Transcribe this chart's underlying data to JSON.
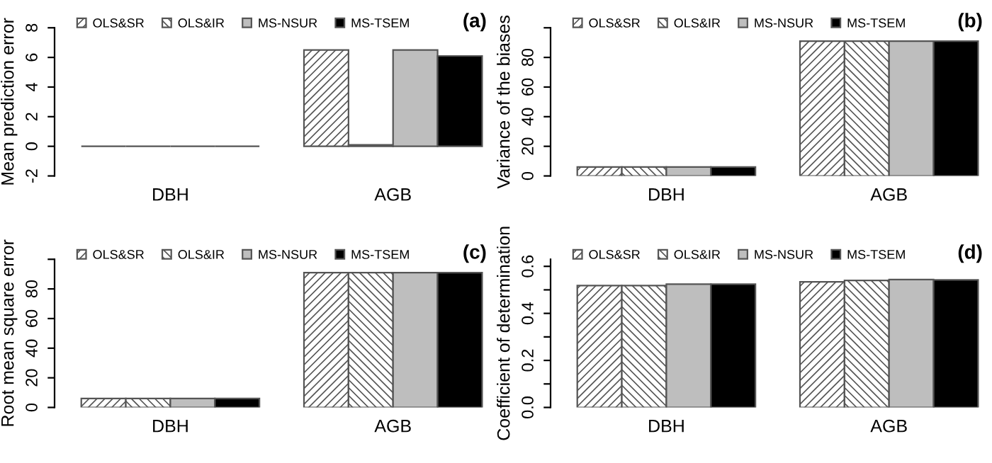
{
  "chart_data": [
    {
      "type": "bar",
      "title": "(a)",
      "ylabel": "Mean prediction error",
      "categories": [
        "DBH",
        "AGB"
      ],
      "ylim": [
        -2,
        8
      ],
      "yticks": [
        -2,
        0,
        2,
        4,
        6,
        8
      ],
      "legend": "top",
      "grid": false,
      "series": [
        {
          "name": "OLS&SR",
          "color": "#555555",
          "values": [
            0,
            6.5
          ]
        },
        {
          "name": "OLS&IR",
          "color": "#555555",
          "values": [
            0,
            0.1
          ]
        },
        {
          "name": "MS-NSUR",
          "color": "#bebebe",
          "values": [
            0,
            6.5
          ]
        },
        {
          "name": "MS-TSEM",
          "color": "#000000",
          "values": [
            0,
            6.1
          ]
        }
      ]
    },
    {
      "type": "bar",
      "title": "(b)",
      "ylabel": "Variance of the biases",
      "categories": [
        "DBH",
        "AGB"
      ],
      "ylim": [
        0,
        100
      ],
      "yticks": [
        0,
        20,
        40,
        60,
        80,
        {
          "value": 100,
          "label": null
        }
      ],
      "legend": "top",
      "grid": false,
      "series": [
        {
          "name": "OLS&SR",
          "color": "#555555",
          "values": [
            6,
            91
          ]
        },
        {
          "name": "OLS&IR",
          "color": "#555555",
          "values": [
            6,
            91
          ]
        },
        {
          "name": "MS-NSUR",
          "color": "#bebebe",
          "values": [
            6,
            91
          ]
        },
        {
          "name": "MS-TSEM",
          "color": "#000000",
          "values": [
            6,
            91
          ]
        }
      ]
    },
    {
      "type": "bar",
      "title": "(c)",
      "ylabel": "Root mean square error",
      "categories": [
        "DBH",
        "AGB"
      ],
      "ylim": [
        0,
        100
      ],
      "yticks": [
        0,
        20,
        40,
        60,
        80,
        {
          "value": 100,
          "label": null
        }
      ],
      "legend": "top",
      "grid": false,
      "series": [
        {
          "name": "OLS&SR",
          "color": "#555555",
          "values": [
            6,
            91
          ]
        },
        {
          "name": "OLS&IR",
          "color": "#555555",
          "values": [
            6,
            91
          ]
        },
        {
          "name": "MS-NSUR",
          "color": "#bebebe",
          "values": [
            6,
            91
          ]
        },
        {
          "name": "MS-TSEM",
          "color": "#000000",
          "values": [
            6,
            91
          ]
        }
      ]
    },
    {
      "type": "bar",
      "title": "(d)",
      "ylabel": "Coefficient of determination",
      "categories": [
        "DBH",
        "AGB"
      ],
      "ylim": [
        0,
        0.63
      ],
      "yticks": [
        {
          "value": 0.0,
          "label": "0.0"
        },
        {
          "value": 0.1,
          "label": null
        },
        {
          "value": 0.2,
          "label": "0.2"
        },
        {
          "value": 0.3,
          "label": null
        },
        {
          "value": 0.4,
          "label": "0.4"
        },
        {
          "value": 0.5,
          "label": null
        },
        {
          "value": 0.6,
          "label": "0.6"
        }
      ],
      "legend": "top",
      "grid": false,
      "series": [
        {
          "name": "OLS&SR",
          "color": "#555555",
          "values": [
            0.518,
            0.534
          ]
        },
        {
          "name": "OLS&IR",
          "color": "#555555",
          "values": [
            0.518,
            0.54
          ]
        },
        {
          "name": "MS-NSUR",
          "color": "#bebebe",
          "values": [
            0.524,
            0.544
          ]
        },
        {
          "name": "MS-TSEM",
          "color": "#000000",
          "values": [
            0.524,
            0.542
          ]
        }
      ]
    }
  ]
}
